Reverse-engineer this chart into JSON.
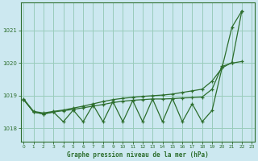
{
  "title": "Graphe pression niveau de la mer (hPa)",
  "bg_color": "#cce8f0",
  "grid_color": "#99ccbb",
  "line_color": "#2d6e2d",
  "x_ticks": [
    0,
    1,
    2,
    3,
    4,
    5,
    6,
    7,
    8,
    9,
    10,
    11,
    12,
    13,
    14,
    15,
    16,
    17,
    18,
    19,
    20,
    21,
    22,
    23
  ],
  "y_ticks": [
    1018,
    1019,
    1020,
    1021
  ],
  "ylim": [
    1017.6,
    1021.85
  ],
  "xlim": [
    -0.3,
    23.3
  ],
  "upper": [
    1018.9,
    1018.52,
    1018.47,
    1018.52,
    1018.56,
    1018.62,
    1018.68,
    1018.75,
    1018.82,
    1018.88,
    1018.92,
    1018.95,
    1018.98,
    1019.0,
    1019.02,
    1019.05,
    1019.1,
    1019.15,
    1019.2,
    1019.45,
    1019.85,
    1021.1,
    1021.6
  ],
  "mid": [
    1018.88,
    1018.5,
    1018.44,
    1018.5,
    1018.54,
    1018.58,
    1018.63,
    1018.68,
    1018.73,
    1018.79,
    1018.83,
    1018.86,
    1018.88,
    1018.9,
    1018.9,
    1018.91,
    1018.93,
    1018.94,
    1018.96,
    1019.2,
    1019.9,
    1020.0,
    1020.05
  ],
  "zigzag": [
    1018.88,
    1018.5,
    1018.44,
    1018.5,
    1018.2,
    1018.56,
    1018.2,
    1018.72,
    1018.2,
    1018.82,
    1018.2,
    1018.85,
    1018.2,
    1018.9,
    1018.2,
    1018.92,
    1018.2,
    1018.75,
    1018.2,
    1018.55,
    1019.85,
    1020.02,
    1021.6
  ],
  "x23": [
    0,
    1,
    2,
    3,
    4,
    5,
    6,
    7,
    8,
    9,
    10,
    11,
    12,
    13,
    14,
    15,
    16,
    17,
    18,
    19,
    20,
    21,
    22
  ]
}
